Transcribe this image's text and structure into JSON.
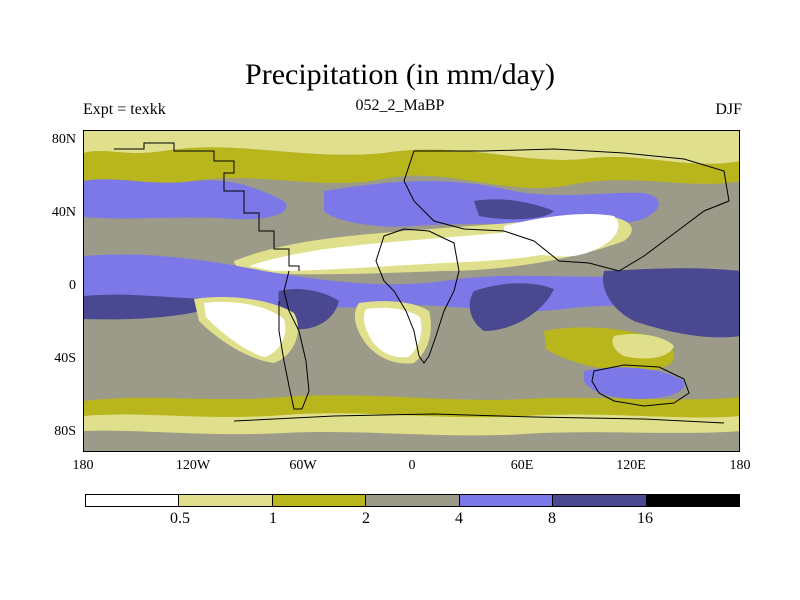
{
  "title": "Precipitation (in mm/day)",
  "experiment_label": "Expt = texkk",
  "run_label": "052_2_MaBP",
  "season_label": "DJF",
  "map": {
    "y_tick_labels": [
      "80N",
      "40N",
      "0",
      "40S",
      "80S"
    ],
    "x_tick_labels": [
      "180",
      "120W",
      "60W",
      "0",
      "60E",
      "120E",
      "180"
    ]
  },
  "colorbar": {
    "colors": [
      "#ffffff",
      "#e0e08c",
      "#b8b61c",
      "#9c9a88",
      "#7c78e8",
      "#4a4890",
      "#000000"
    ],
    "labels": [
      "0.5",
      "1",
      "2",
      "4",
      "8",
      "16"
    ]
  },
  "colors": {
    "white": "#ffffff",
    "light_yellow": "#e0e08c",
    "olive": "#b8b61c",
    "gray": "#9c9a88",
    "blue": "#7c78e8",
    "dark_blue": "#4a4890"
  }
}
